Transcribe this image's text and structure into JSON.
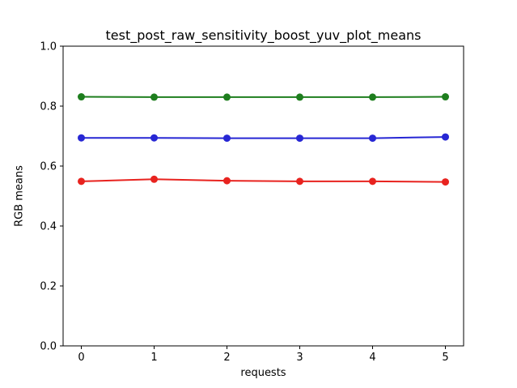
{
  "figure": {
    "background": "#ffffff",
    "frame_color": "#000000"
  },
  "chart_data": {
    "type": "line",
    "title": "test_post_raw_sensitivity_boost_yuv_plot_means",
    "xlabel": "requests",
    "ylabel": "RGB means",
    "x": [
      0,
      1,
      2,
      3,
      4,
      5
    ],
    "series": [
      {
        "name": "red",
        "color": "#e8231f",
        "marker": "circle",
        "values": [
          0.549,
          0.556,
          0.551,
          0.549,
          0.549,
          0.547
        ]
      },
      {
        "name": "green",
        "color": "#1e7e1e",
        "marker": "circle",
        "values": [
          0.831,
          0.83,
          0.83,
          0.83,
          0.83,
          0.831
        ]
      },
      {
        "name": "blue",
        "color": "#2727d4",
        "marker": "circle",
        "values": [
          0.694,
          0.694,
          0.693,
          0.693,
          0.693,
          0.697
        ]
      }
    ],
    "xlim": [
      -0.25,
      5.25
    ],
    "ylim": [
      0.0,
      1.0
    ],
    "xticks": [
      0,
      1,
      2,
      3,
      4,
      5
    ],
    "xtick_labels": [
      "0",
      "1",
      "2",
      "3",
      "4",
      "5"
    ],
    "yticks": [
      0.0,
      0.2,
      0.4,
      0.6,
      0.8,
      1.0
    ],
    "ytick_labels": [
      "0.0",
      "0.2",
      "0.4",
      "0.6",
      "0.8",
      "1.0"
    ],
    "grid": false,
    "legend": null
  }
}
